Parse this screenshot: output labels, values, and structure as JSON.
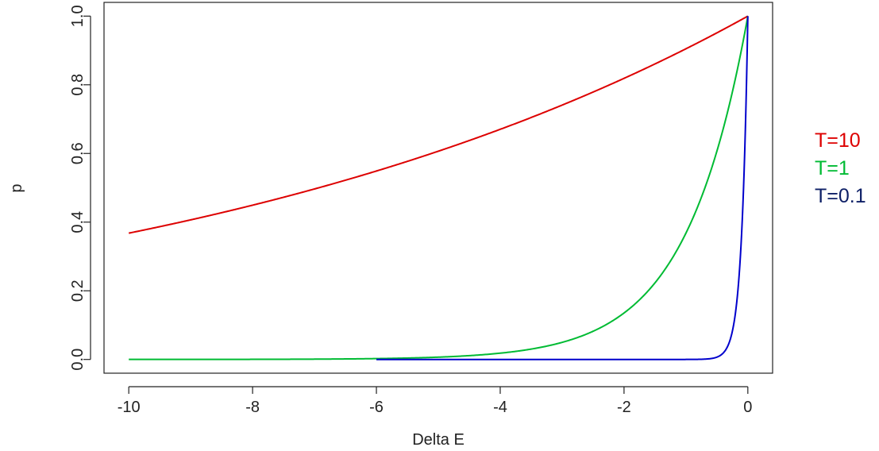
{
  "chart_data": {
    "type": "line",
    "title": "",
    "xlabel": "Delta E",
    "ylabel": "p",
    "xlim": [
      -10.4,
      0.4
    ],
    "ylim": [
      -0.04,
      1.04
    ],
    "xticks": [
      -10,
      -8,
      -6,
      -4,
      -2,
      0
    ],
    "yticks": [
      0.0,
      0.2,
      0.4,
      0.6,
      0.8,
      1.0
    ],
    "xtick_labels": [
      "-10",
      "-8",
      "-6",
      "-4",
      "-2",
      "0"
    ],
    "ytick_labels": [
      "0.0",
      "0.2",
      "0.4",
      "0.6",
      "0.8",
      "1.0"
    ],
    "grid": false,
    "legend_position": "right",
    "series": [
      {
        "name": "T=10",
        "color": "#dd0000",
        "x_range": [
          -10,
          0
        ],
        "x": [
          -10,
          -9,
          -8,
          -7,
          -6,
          -5,
          -4,
          -3,
          -2,
          -1,
          0
        ],
        "y": [
          0.368,
          0.407,
          0.449,
          0.497,
          0.549,
          0.607,
          0.67,
          0.741,
          0.819,
          0.905,
          1.0
        ]
      },
      {
        "name": "T=1",
        "color": "#00bb33",
        "x_range": [
          -10,
          0
        ],
        "x": [
          -10,
          -6,
          -4,
          -3,
          -2,
          -1.5,
          -1,
          -0.5,
          0
        ],
        "y": [
          0.0,
          0.0025,
          0.018,
          0.05,
          0.135,
          0.223,
          0.368,
          0.607,
          1.0
        ]
      },
      {
        "name": "T=0.1",
        "color": "#0000cc",
        "x_range": [
          -6,
          0
        ],
        "x": [
          -6,
          -1,
          -0.5,
          -0.3,
          -0.2,
          -0.1,
          0
        ],
        "y": [
          0.0,
          0.0,
          0.007,
          0.05,
          0.135,
          0.368,
          1.0
        ]
      }
    ]
  },
  "legend": {
    "items": [
      {
        "label": "T=10",
        "color": "#dd0000"
      },
      {
        "label": "T=1",
        "color": "#00bb33"
      },
      {
        "label": "T=0.1",
        "color": "#0d1f66"
      }
    ]
  }
}
